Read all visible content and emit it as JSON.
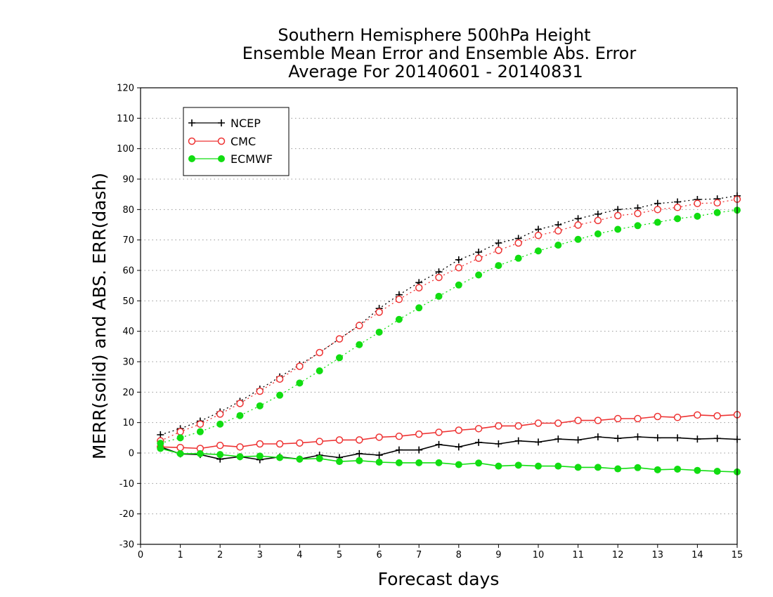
{
  "chart_data": {
    "type": "line",
    "title": [
      "Southern Hemisphere 500hPa Height",
      "Ensemble Mean Error and Ensemble Abs. Error",
      "Average For 20140601 - 20140831"
    ],
    "xlabel": "Forecast days",
    "ylabel": "MERR(solid) and ABS. ERR(dash)",
    "xlim": [
      0,
      15
    ],
    "ylim": [
      -30,
      120
    ],
    "xticks": [
      "0",
      "1",
      "2",
      "3",
      "4",
      "5",
      "6",
      "7",
      "8",
      "9",
      "10",
      "11",
      "12",
      "13",
      "14",
      "15"
    ],
    "yticks": [
      "-30",
      "-20",
      "-10",
      "0",
      "10",
      "20",
      "30",
      "40",
      "50",
      "60",
      "70",
      "80",
      "90",
      "100",
      "110",
      "120"
    ],
    "grid": true,
    "legend_position": "top-left",
    "x": [
      0.5,
      1,
      1.5,
      2,
      2.5,
      3,
      3.5,
      4,
      4.5,
      5,
      5.5,
      6,
      6.5,
      7,
      7.5,
      8,
      8.5,
      9,
      9.5,
      10,
      10.5,
      11,
      11.5,
      12,
      12.5,
      13,
      13.5,
      14,
      14.5,
      15
    ],
    "series": [
      {
        "name": "NCEP",
        "color": "#000000",
        "marker": "plus",
        "merr": [
          2,
          -0.3,
          -0.5,
          -2,
          -1.2,
          -2.2,
          -1.3,
          -2,
          -0.7,
          -1.5,
          -0.2,
          -0.7,
          1,
          1,
          2.8,
          2,
          3.5,
          3,
          4,
          3.6,
          4.6,
          4.3,
          5.3,
          4.8,
          5.3,
          5,
          5,
          4.6,
          4.8,
          4.5
        ],
        "abserr": [
          6,
          8,
          10.5,
          13.5,
          17,
          21,
          25,
          29,
          33,
          37.5,
          42,
          47.5,
          52,
          56,
          59.5,
          63.5,
          66,
          69,
          70.5,
          73.5,
          75,
          77,
          78.5,
          80,
          80.5,
          82,
          82.5,
          83.3,
          83.5,
          84.5
        ]
      },
      {
        "name": "CMC",
        "color": "#ee3333",
        "marker": "open-circle",
        "merr": [
          2,
          1.8,
          1.5,
          2.5,
          2,
          3,
          3,
          3.3,
          3.8,
          4.3,
          4.3,
          5.2,
          5.5,
          6.2,
          6.8,
          7.5,
          8,
          8.9,
          8.9,
          9.8,
          9.8,
          10.7,
          10.7,
          11.3,
          11.3,
          12,
          11.7,
          12.5,
          12.2,
          12.6
        ],
        "abserr": [
          4,
          7,
          9.5,
          12.8,
          16.3,
          20.3,
          24.3,
          28.5,
          33,
          37.5,
          41.9,
          46.3,
          50.5,
          54.3,
          57.7,
          60.9,
          64,
          66.6,
          69,
          71.5,
          73,
          74.9,
          76.4,
          78,
          78.7,
          80,
          80.7,
          82,
          82.2,
          83.4
        ]
      },
      {
        "name": "ECMWF",
        "color": "#11dd11",
        "marker": "filled-circle",
        "merr": [
          1.5,
          -0.2,
          -0.2,
          -0.5,
          -1.2,
          -1,
          -1.5,
          -2,
          -1.8,
          -2.8,
          -2.5,
          -3,
          -3.2,
          -3.2,
          -3.2,
          -3.8,
          -3.3,
          -4.3,
          -4,
          -4.3,
          -4.3,
          -4.7,
          -4.7,
          -5.2,
          -4.8,
          -5.5,
          -5.3,
          -5.7,
          -6,
          -6.2
        ],
        "abserr": [
          3.2,
          5,
          7,
          9.5,
          12.3,
          15.5,
          19,
          23,
          27,
          31.3,
          35.6,
          39.7,
          43.9,
          47.7,
          51.5,
          55.2,
          58.5,
          61.6,
          64,
          66.4,
          68.3,
          70.2,
          72,
          73.5,
          74.7,
          75.8,
          77,
          77.8,
          79,
          79.8
        ]
      }
    ]
  }
}
